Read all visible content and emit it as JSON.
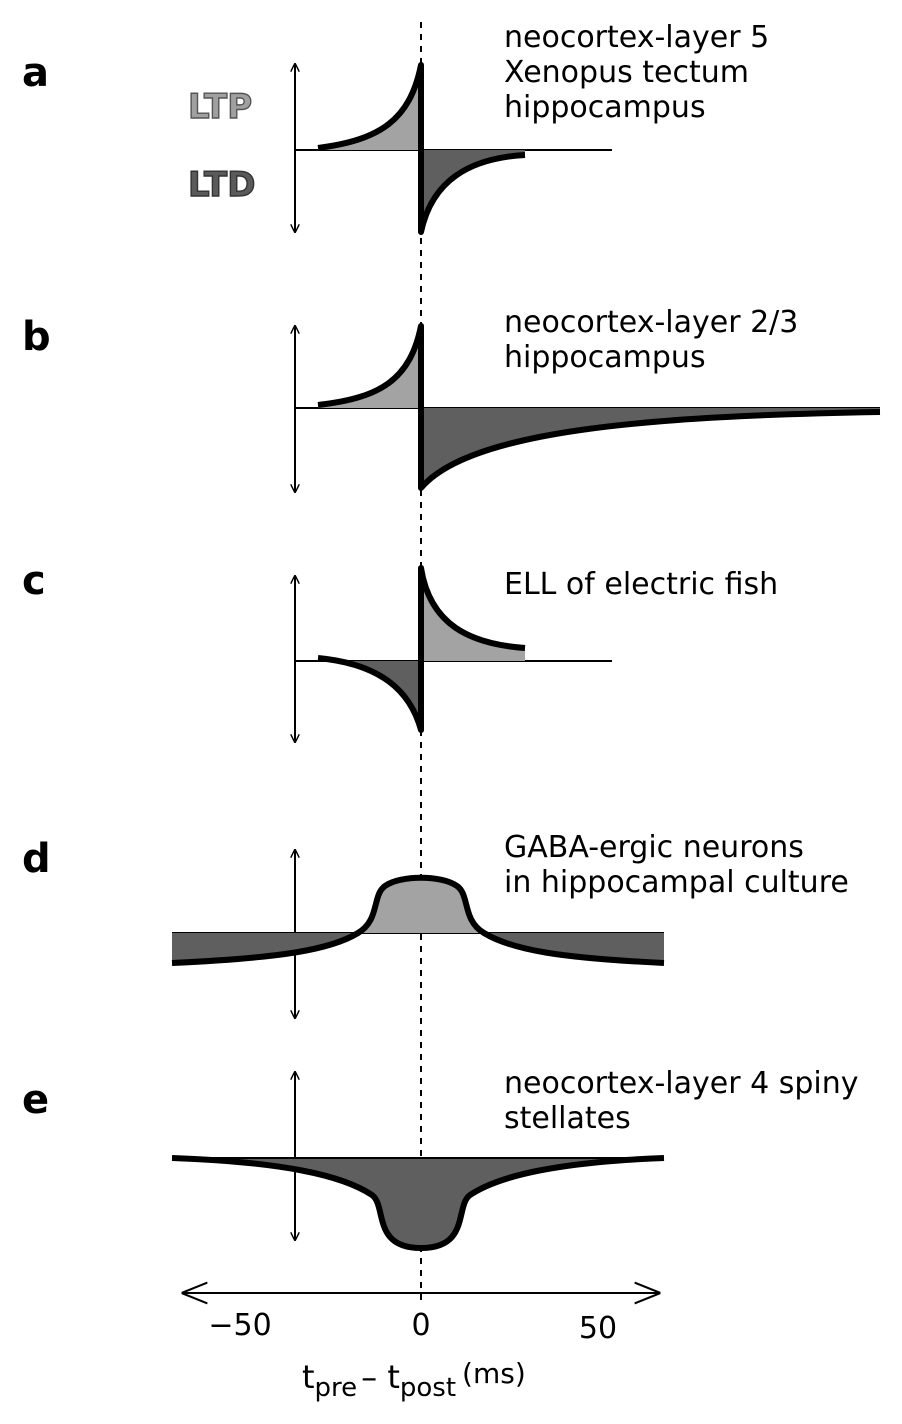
{
  "colors": {
    "ltp_fill": "#a3a3a3",
    "ltd_fill": "#5f5f5f",
    "stroke": "#000000"
  },
  "legend": {
    "ltp": "LTP",
    "ltd": "LTD"
  },
  "panels": [
    {
      "letter": "a",
      "lines": [
        "neocortex-layer 5",
        "Xenopus tectum",
        "hippocampus"
      ]
    },
    {
      "letter": "b",
      "lines": [
        "neocortex-layer 2/3",
        "hippocampus"
      ]
    },
    {
      "letter": "c",
      "lines": [
        "ELL of electric fish"
      ]
    },
    {
      "letter": "d",
      "lines": [
        "GABA-ergic  neurons",
        "in hippocampal culture"
      ]
    },
    {
      "letter": "e",
      "lines": [
        "neocortex-layer 4 spiny",
        "stellates"
      ]
    }
  ],
  "x_axis": {
    "ticks": [
      "−50",
      "0",
      "50"
    ],
    "label_t": "t",
    "label_pre": "pre",
    "label_minus": "– t",
    "label_post": "post",
    "label_units": "(ms)"
  }
}
